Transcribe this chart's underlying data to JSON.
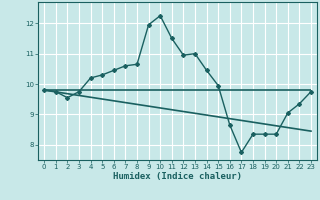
{
  "title": "",
  "xlabel": "Humidex (Indice chaleur)",
  "ylabel": "",
  "background_color": "#c8e8e8",
  "grid_color": "#e8e8e8",
  "line_color": "#1a6060",
  "xlim": [
    -0.5,
    23.5
  ],
  "ylim": [
    7.5,
    12.7
  ],
  "yticks": [
    8,
    9,
    10,
    11,
    12
  ],
  "xticks": [
    0,
    1,
    2,
    3,
    4,
    5,
    6,
    7,
    8,
    9,
    10,
    11,
    12,
    13,
    14,
    15,
    16,
    17,
    18,
    19,
    20,
    21,
    22,
    23
  ],
  "curve1_x": [
    0,
    1,
    2,
    3,
    4,
    5,
    6,
    7,
    8,
    9,
    10,
    11,
    12,
    13,
    14,
    15,
    16,
    17,
    18,
    19,
    20,
    21,
    22,
    23
  ],
  "curve1_y": [
    9.8,
    9.75,
    9.55,
    9.75,
    10.2,
    10.3,
    10.45,
    10.6,
    10.65,
    11.95,
    12.25,
    11.5,
    10.95,
    11.0,
    10.45,
    9.95,
    8.65,
    7.75,
    8.35,
    8.35,
    8.35,
    9.05,
    9.35,
    9.75
  ],
  "trend_x": [
    0,
    23
  ],
  "trend_y": [
    9.8,
    8.45
  ],
  "hline_y": 9.8,
  "hline_x_start": 0,
  "hline_x_end": 23
}
